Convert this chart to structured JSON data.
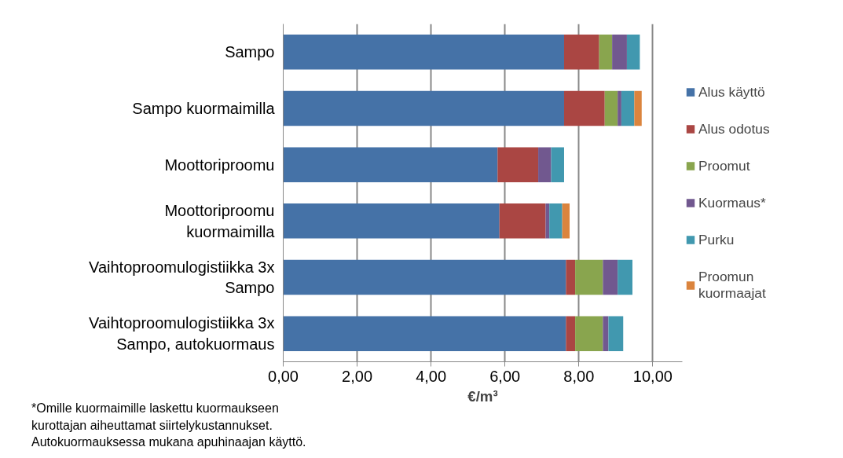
{
  "chart_data": {
    "type": "bar",
    "orientation": "horizontal",
    "stacked": true,
    "categories": [
      "Sampo",
      "Sampo kuormaimilla",
      "Moottoriproomu",
      "Moottoriproomu\nkuormaimilla",
      "Vaihtoproomulogistiikka 3x\nSampo",
      "Vaihtoproomulogistiikka 3x\nSampo, autokuormaus"
    ],
    "series": [
      {
        "name": "Alus käyttö",
        "color": "#4572a7",
        "values": [
          7.6,
          7.6,
          5.8,
          5.85,
          7.65,
          7.65
        ]
      },
      {
        "name": "Alus odotus",
        "color": "#aa4643",
        "values": [
          0.95,
          1.1,
          1.1,
          1.25,
          0.25,
          0.25
        ]
      },
      {
        "name": "Proomut",
        "color": "#89a54e",
        "values": [
          0.35,
          0.35,
          null,
          null,
          0.75,
          0.75
        ]
      },
      {
        "name": "Kuormaus*",
        "color": "#71588f",
        "values": [
          0.4,
          0.1,
          0.35,
          0.1,
          0.4,
          0.15
        ]
      },
      {
        "name": "Purku",
        "color": "#4198af",
        "values": [
          0.35,
          0.35,
          0.35,
          0.35,
          0.4,
          0.4
        ]
      },
      {
        "name": "Proomun\nkuormaajat",
        "color": "#db843d",
        "values": [
          null,
          0.2,
          null,
          0.2,
          null,
          null
        ]
      }
    ],
    "xlabel": "€/m³",
    "xlim": [
      0,
      10.8
    ],
    "xticks": [
      {
        "value": 0,
        "label": "0,00"
      },
      {
        "value": 2,
        "label": "2,00"
      },
      {
        "value": 4,
        "label": "4,00"
      },
      {
        "value": 6,
        "label": "6,00"
      },
      {
        "value": 8,
        "label": "8,00"
      },
      {
        "value": 10,
        "label": "10,00"
      }
    ],
    "grid": "x",
    "legend": "right",
    "annotations": [
      "*Omille kuormaimille laskettu kuormaukseen\nkurottajan aiheuttamat siirtelykustannukset.\nAutokuormauksessa mukana apuhinaajan käyttö."
    ]
  }
}
